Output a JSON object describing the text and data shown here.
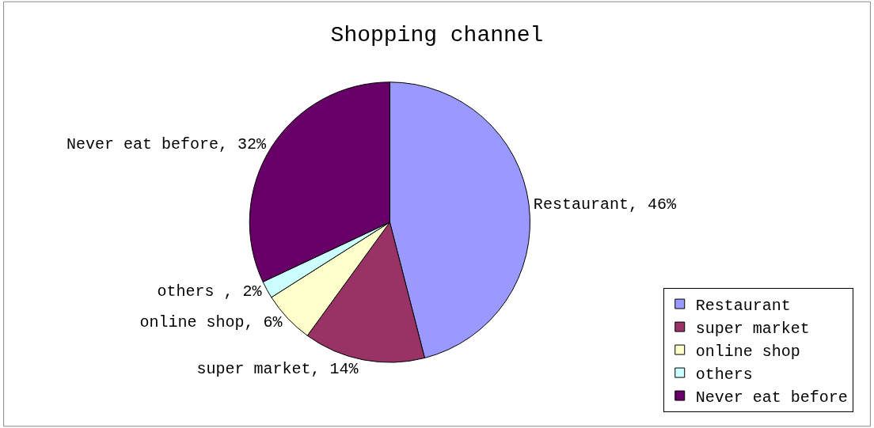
{
  "chart_data": {
    "type": "pie",
    "title": "Shopping channel",
    "categories": [
      "Restaurant",
      "super market",
      "online shop",
      "others",
      "Never eat before"
    ],
    "values": [
      46,
      14,
      6,
      2,
      32
    ],
    "colors": [
      "#9999ff",
      "#993366",
      "#ffffcc",
      "#ccffff",
      "#660066"
    ],
    "value_labels": [
      "Restaurant, 46%",
      "super market, 14%",
      "online shop, 6%",
      "others , 2%",
      "Never eat before, 32%"
    ],
    "legend": "bottom right"
  }
}
